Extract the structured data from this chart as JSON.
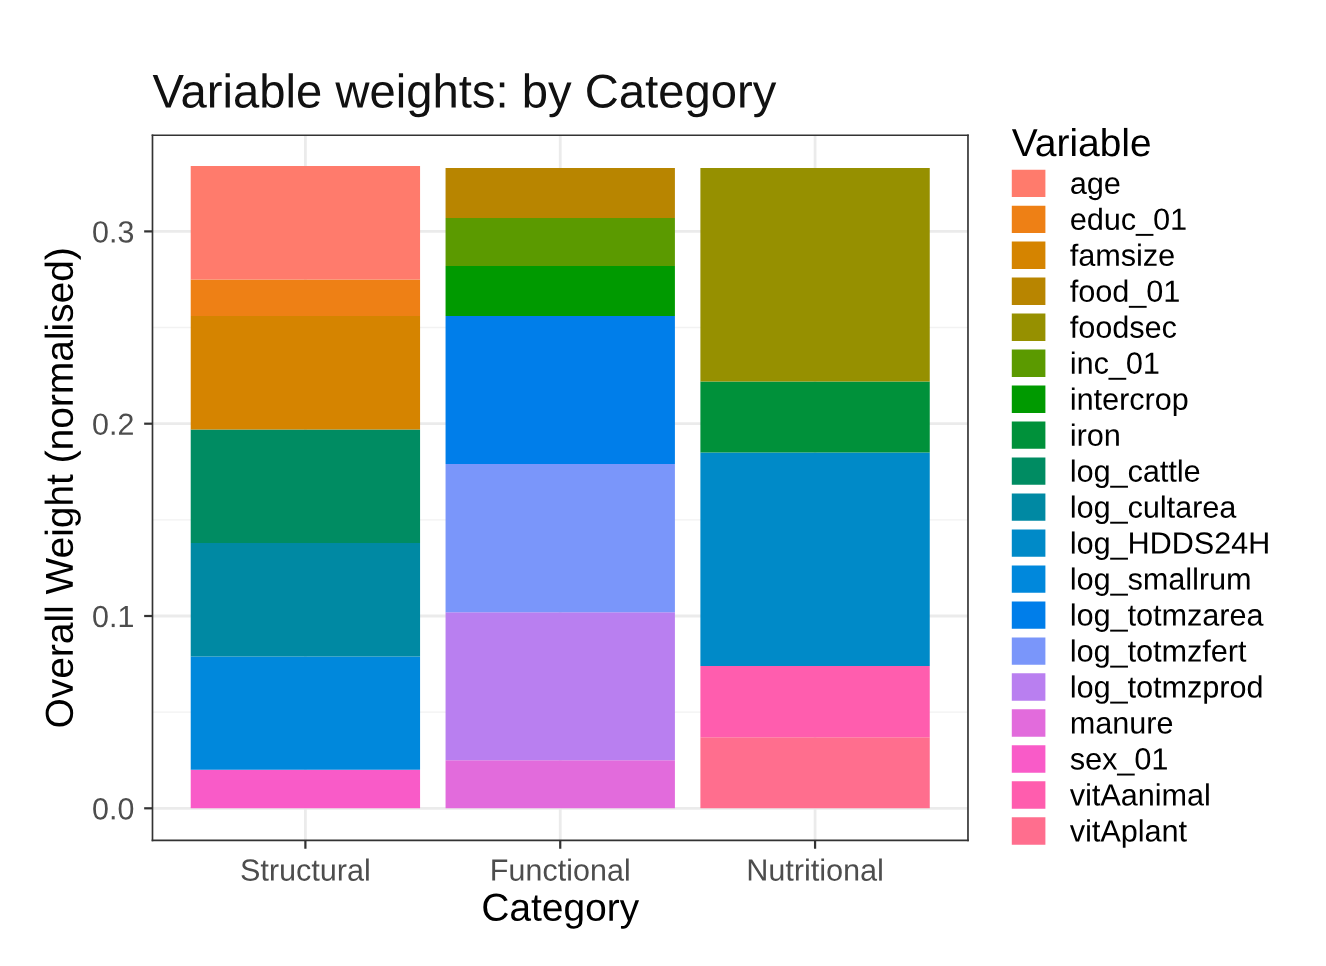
{
  "chart_data": {
    "type": "bar",
    "stacked": true,
    "title": "Variable weights: by Category",
    "xlabel": "Category",
    "ylabel": "Overall Weight (normalised)",
    "legend_title": "Variable",
    "categories": [
      "Structural",
      "Functional",
      "Nutritional"
    ],
    "series": [
      {
        "name": "vitAplant",
        "color": "#ff6e8e",
        "values": [
          null,
          null,
          0.037
        ]
      },
      {
        "name": "vitAanimal",
        "color": "#ff5dae",
        "values": [
          null,
          null,
          0.037
        ]
      },
      {
        "name": "sex_01",
        "color": "#f95bc8",
        "values": [
          0.02,
          null,
          null
        ]
      },
      {
        "name": "manure",
        "color": "#e26bdc",
        "values": [
          null,
          0.025,
          null
        ]
      },
      {
        "name": "log_totmzprod",
        "color": "#b97ff0",
        "values": [
          null,
          0.077,
          null
        ]
      },
      {
        "name": "log_totmzfert",
        "color": "#7a96fa",
        "values": [
          null,
          0.077,
          null
        ]
      },
      {
        "name": "log_totmzarea",
        "color": "#007eea",
        "values": [
          null,
          0.077,
          null
        ]
      },
      {
        "name": "log_smallrum",
        "color": "#0088dc",
        "values": [
          0.059,
          null,
          null
        ]
      },
      {
        "name": "log_HDDS24H",
        "color": "#008ac8",
        "values": [
          null,
          null,
          0.111
        ]
      },
      {
        "name": "log_cultarea",
        "color": "#0089a3",
        "values": [
          0.059,
          null,
          null
        ]
      },
      {
        "name": "log_cattle",
        "color": "#008c62",
        "values": [
          0.059,
          null,
          null
        ]
      },
      {
        "name": "iron",
        "color": "#00913a",
        "values": [
          null,
          null,
          0.037
        ]
      },
      {
        "name": "intercrop",
        "color": "#009a00",
        "values": [
          null,
          0.026,
          null
        ]
      },
      {
        "name": "inc_01",
        "color": "#5b9a00",
        "values": [
          null,
          0.025,
          null
        ]
      },
      {
        "name": "foodsec",
        "color": "#969000",
        "values": [
          null,
          null,
          0.111
        ]
      },
      {
        "name": "food_01",
        "color": "#b88500",
        "values": [
          null,
          0.026,
          null
        ]
      },
      {
        "name": "famsize",
        "color": "#d58400",
        "values": [
          0.059,
          null,
          null
        ]
      },
      {
        "name": "educ_01",
        "color": "#ee8015",
        "values": [
          0.019,
          null,
          null
        ]
      },
      {
        "name": "age",
        "color": "#ff7b6c",
        "values": [
          0.059,
          null,
          null
        ]
      }
    ],
    "ylim": [
      -0.0167,
      0.35
    ],
    "yticks": [
      {
        "value": 0,
        "label": "0.0"
      },
      {
        "value": 0.1,
        "label": "0.1"
      },
      {
        "value": 0.2,
        "label": "0.2"
      },
      {
        "value": 0.3,
        "label": "0.3"
      }
    ],
    "grid": true,
    "legend": "right"
  }
}
